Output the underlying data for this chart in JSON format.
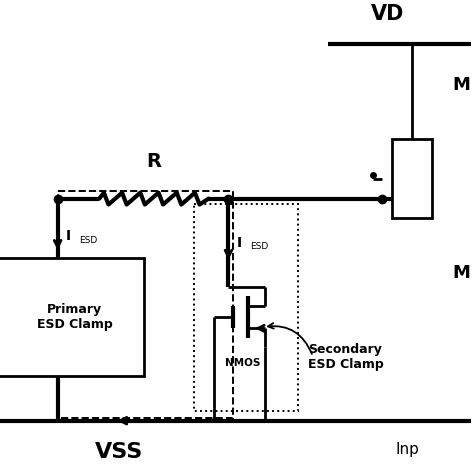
{
  "background_color": "#ffffff",
  "vdd_label": "VD",
  "vss_label": "VSS",
  "inp_label": "Inp",
  "R_label": "R",
  "primary_label": "Primary\nESD Clamp",
  "secondary_label": "Secondary\nESD Clamp",
  "nmos_label": "NMOS",
  "M1_label": "M",
  "M2_label": "M",
  "lw": 2.0,
  "lw_thick": 3.0,
  "lw_dash": 1.4
}
